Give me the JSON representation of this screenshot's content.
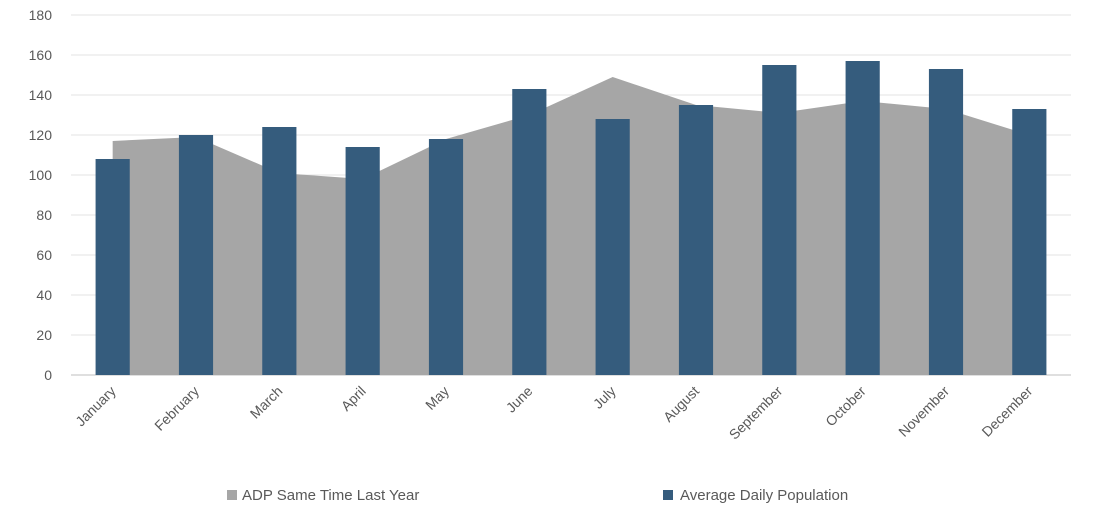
{
  "chart_data": {
    "type": "bar",
    "categories": [
      "January",
      "February",
      "March",
      "April",
      "May",
      "June",
      "July",
      "August",
      "September",
      "October",
      "November",
      "December"
    ],
    "series": [
      {
        "name": "ADP Same Time Last Year",
        "type": "area",
        "color": "#a6a6a6",
        "values": [
          117,
          119,
          101,
          98,
          118,
          130,
          149,
          135,
          131,
          137,
          133,
          120
        ]
      },
      {
        "name": "Average Daily Population",
        "type": "bar",
        "color": "#355c7d",
        "values": [
          108,
          120,
          124,
          114,
          118,
          143,
          128,
          135,
          155,
          157,
          153,
          133
        ]
      }
    ],
    "y_ticks": [
      0,
      20,
      40,
      60,
      80,
      100,
      120,
      140,
      160,
      180
    ],
    "ylim": [
      0,
      180
    ],
    "title": "",
    "xlabel": "",
    "ylabel": "",
    "grid": true,
    "legend_position": "bottom"
  }
}
